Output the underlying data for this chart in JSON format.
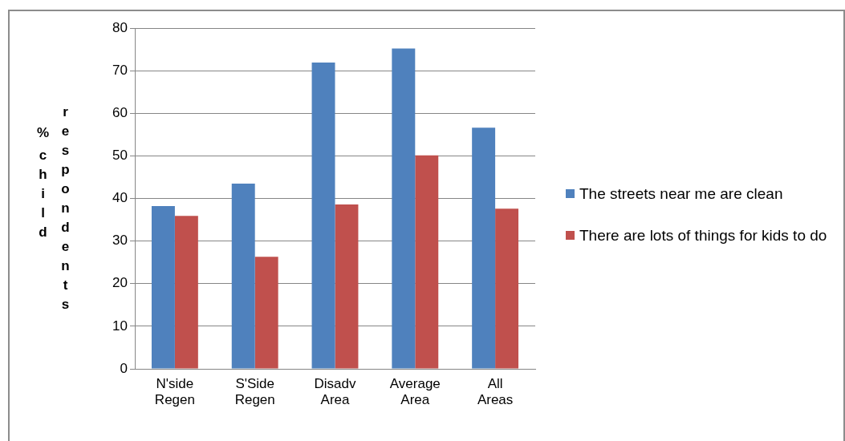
{
  "chart_data": {
    "type": "bar",
    "ylabel": "% child respondents",
    "categories": [
      "N'side Regen",
      "S'Side Regen",
      "Disadv Area",
      "Average Area",
      "All Areas"
    ],
    "series": [
      {
        "name": "The streets near me are clean",
        "color": "#4f81bd",
        "values": [
          38.2,
          43.5,
          71.9,
          75.2,
          56.6
        ]
      },
      {
        "name": "There are lots of things for kids to do",
        "color": "#c0504d",
        "values": [
          35.9,
          26.3,
          38.6,
          50.1,
          37.6
        ]
      }
    ],
    "ylim": [
      0,
      80
    ],
    "yticks": [
      0,
      10,
      20,
      30,
      40,
      50,
      60,
      70,
      80
    ],
    "grid": "y",
    "legend": "right"
  }
}
